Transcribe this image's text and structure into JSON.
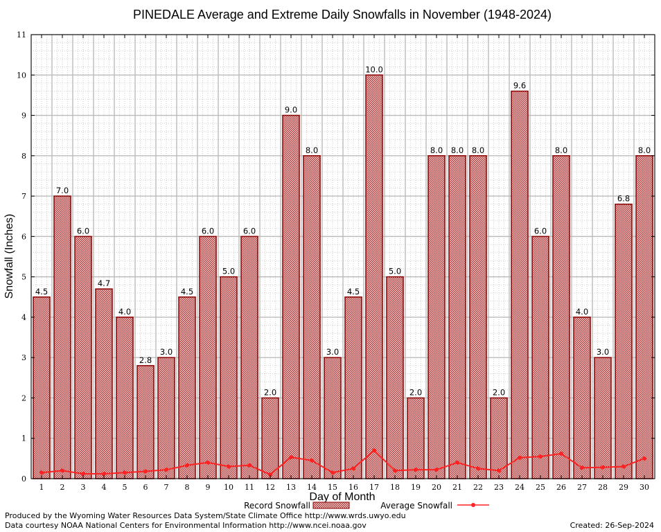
{
  "chart_data": {
    "type": "bar",
    "title": "PINEDALE Average and Extreme Daily Snowfalls in November (1948-2024)",
    "xlabel": "Day of Month",
    "ylabel": "Snowfall (Inches)",
    "ylim": [
      0,
      11
    ],
    "yticks": [
      "0",
      "1",
      "2",
      "3",
      "4",
      "5",
      "6",
      "7",
      "8",
      "9",
      "10",
      "11"
    ],
    "categories": [
      "1",
      "2",
      "3",
      "4",
      "5",
      "6",
      "7",
      "8",
      "9",
      "10",
      "11",
      "12",
      "13",
      "14",
      "15",
      "16",
      "17",
      "18",
      "19",
      "20",
      "21",
      "22",
      "23",
      "24",
      "25",
      "26",
      "27",
      "28",
      "29",
      "30"
    ],
    "series": [
      {
        "name": "Record Snowfall",
        "kind": "bar",
        "values": [
          4.5,
          7.0,
          6.0,
          4.7,
          4.0,
          2.8,
          3.0,
          4.5,
          6.0,
          5.0,
          6.0,
          2.0,
          9.0,
          8.0,
          3.0,
          4.5,
          10.0,
          5.0,
          2.0,
          8.0,
          8.0,
          8.0,
          2.0,
          9.6,
          6.0,
          8.0,
          4.0,
          3.0,
          6.8,
          8.0
        ],
        "labels": [
          "4.5",
          "7.0",
          "6.0",
          "4.7",
          "4.0",
          "2.8",
          "3.0",
          "4.5",
          "6.0",
          "5.0",
          "6.0",
          "2.0",
          "9.0",
          "8.0",
          "3.0",
          "4.5",
          "10.0",
          "5.0",
          "2.0",
          "8.0",
          "8.0",
          "8.0",
          "2.0",
          "9.6",
          "6.0",
          "8.0",
          "4.0",
          "3.0",
          "6.8",
          "8.0"
        ]
      },
      {
        "name": "Average Snowfall",
        "kind": "line",
        "values": [
          0.15,
          0.2,
          0.12,
          0.12,
          0.15,
          0.18,
          0.22,
          0.33,
          0.4,
          0.3,
          0.33,
          0.1,
          0.53,
          0.45,
          0.15,
          0.25,
          0.7,
          0.2,
          0.22,
          0.22,
          0.4,
          0.25,
          0.2,
          0.52,
          0.55,
          0.62,
          0.27,
          0.28,
          0.3,
          0.5
        ]
      }
    ],
    "grid": true,
    "legend_position": "bottom-center",
    "colors": {
      "bar_fill": "#a01818",
      "bar_edge": "#8b0000",
      "line": "#ff2222",
      "grid": "#bbbbbb"
    }
  },
  "footer": {
    "produced_by": "Produced by the Wyoming Water Resources Data System/State Climate Office http://www.wrds.uwyo.edu",
    "courtesy": "Data courtesy NOAA National Centers for Environmental Information http://www.ncei.noaa.gov",
    "created": "Created:  26-Sep-2024"
  }
}
